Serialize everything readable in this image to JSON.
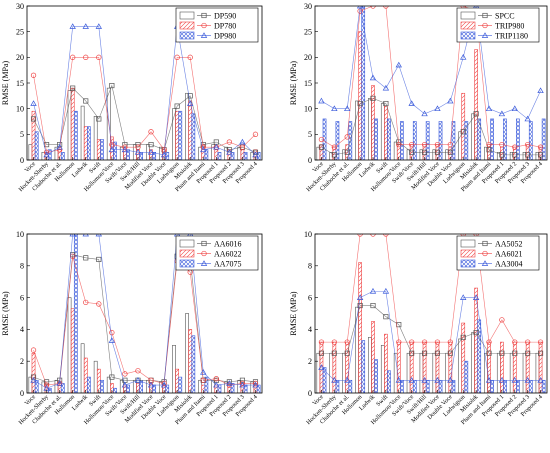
{
  "categories": [
    "Voce",
    "Hockett-Sherby",
    "Chaboche et al.",
    "Hollomon",
    "Ludwik",
    "Swift",
    "Hollomon/Voce",
    "Swift/Voce",
    "Swift/Hill",
    "Modified Voce",
    "Double Voce",
    "Ludwigson",
    "Misiolek",
    "Pham and Itami",
    "Proposed 1",
    "Proposed 2",
    "Proposed 3",
    "Proposed 4"
  ],
  "style": {
    "colors": [
      "#555555",
      "#ef4444",
      "#3b5bdb"
    ],
    "markers": [
      "square",
      "circle",
      "triangle"
    ],
    "hatch": [
      "none",
      "diagonal",
      "cross-diagonal"
    ]
  },
  "chart_data": [
    {
      "type": "bar",
      "ylabel": "RMSE (MPa)",
      "ylim": [
        0,
        30
      ],
      "yticks": [
        0,
        5,
        10,
        15,
        20,
        25,
        30
      ],
      "legend_position": "top-right",
      "series": [
        {
          "name": "DP590",
          "values": [
            3.0,
            1.5,
            2.5,
            13.5,
            10.5,
            8.5,
            14.0,
            2.5,
            3.0,
            3.0,
            2.5,
            10.0,
            13.0,
            2.5,
            3.0,
            2.5,
            2.5,
            1.5
          ]
        },
        {
          "name": "DP780",
          "values": [
            9.5,
            1.5,
            2.0,
            14.0,
            6.5,
            4.0,
            4.5,
            2.5,
            2.0,
            2.0,
            2.0,
            9.5,
            11.5,
            3.0,
            2.0,
            2.0,
            2.0,
            2.0
          ]
        },
        {
          "name": "DP980",
          "values": [
            5.5,
            2.0,
            1.5,
            9.5,
            6.5,
            4.0,
            3.5,
            2.0,
            1.5,
            1.5,
            1.5,
            9.5,
            9.0,
            2.0,
            1.5,
            1.5,
            1.5,
            1.5
          ]
        }
      ],
      "lines": [
        {
          "name": "DP590",
          "values": [
            8.0,
            3.0,
            3.0,
            14.0,
            11.5,
            8.0,
            14.5,
            3.0,
            3.0,
            3.0,
            2.0,
            10.5,
            12.5,
            3.0,
            3.5,
            2.0,
            2.5,
            1.5
          ]
        },
        {
          "name": "DP780",
          "values": [
            16.5,
            1.5,
            2.0,
            20.0,
            20.0,
            20.0,
            3.0,
            2.5,
            2.5,
            5.5,
            2.0,
            20.0,
            20.0,
            2.5,
            2.5,
            3.5,
            2.5,
            5.0
          ]
        },
        {
          "name": "DP980",
          "values": [
            11.0,
            1.0,
            2.5,
            26.0,
            26.0,
            26.0,
            2.0,
            2.0,
            1.5,
            1.5,
            1.0,
            26.0,
            11.0,
            2.0,
            2.5,
            1.5,
            3.5,
            1.0
          ]
        }
      ]
    },
    {
      "type": "bar",
      "ylabel": "RMSE (MPa)",
      "ylim": [
        0,
        30
      ],
      "yticks": [
        0,
        5,
        10,
        15,
        20,
        25,
        30
      ],
      "legend_position": "top-right",
      "series": [
        {
          "name": "SPCC",
          "values": [
            2.5,
            1.5,
            2.0,
            11.5,
            12.0,
            11.0,
            3.5,
            2.0,
            2.0,
            2.0,
            2.0,
            5.5,
            9.0,
            2.5,
            1.5,
            1.5,
            1.5,
            1.5
          ]
        },
        {
          "name": "TRIP980",
          "values": [
            3.0,
            2.5,
            3.0,
            25.0,
            14.5,
            10.5,
            3.0,
            3.0,
            3.0,
            3.0,
            2.5,
            13.0,
            21.5,
            3.0,
            2.5,
            2.5,
            3.0,
            2.5
          ]
        },
        {
          "name": "TRIP1180",
          "values": [
            8.0,
            7.5,
            7.5,
            30.0,
            8.0,
            8.0,
            7.5,
            7.5,
            7.5,
            7.5,
            7.5,
            7.5,
            8.0,
            8.0,
            8.0,
            8.0,
            7.5,
            8.0
          ]
        }
      ],
      "lines": [
        {
          "name": "SPCC",
          "values": [
            2.5,
            1.0,
            1.5,
            11.0,
            12.0,
            11.0,
            3.5,
            1.5,
            1.5,
            1.5,
            1.5,
            5.5,
            9.0,
            2.0,
            1.0,
            1.0,
            1.0,
            1.0
          ]
        },
        {
          "name": "TRIP980",
          "values": [
            4.0,
            2.5,
            4.5,
            29.0,
            30.0,
            30.0,
            3.0,
            3.0,
            3.0,
            3.0,
            3.0,
            30.0,
            29.0,
            3.0,
            3.0,
            2.5,
            3.0,
            2.5
          ]
        },
        {
          "name": "TRIP1180",
          "values": [
            11.5,
            10.0,
            10.0,
            30.0,
            16.0,
            14.0,
            18.5,
            11.0,
            9.0,
            10.0,
            11.5,
            20.0,
            30.0,
            10.0,
            9.0,
            10.0,
            8.0,
            13.5
          ]
        }
      ]
    },
    {
      "type": "bar",
      "ylabel": "RMSE (MPa)",
      "ylim": [
        0,
        10
      ],
      "yticks": [
        0,
        2,
        4,
        6,
        8,
        10
      ],
      "legend_position": "top-right",
      "series": [
        {
          "name": "AA6016",
          "values": [
            1.0,
            0.7,
            0.8,
            6.0,
            3.1,
            2.0,
            1.0,
            0.8,
            0.8,
            0.8,
            0.7,
            3.0,
            5.0,
            0.8,
            0.8,
            0.7,
            0.8,
            0.7
          ]
        },
        {
          "name": "AA6022",
          "values": [
            2.5,
            0.5,
            0.6,
            5.3,
            2.2,
            1.5,
            0.6,
            0.5,
            0.6,
            0.6,
            0.5,
            1.5,
            4.0,
            0.5,
            0.5,
            0.5,
            0.6,
            0.6
          ]
        },
        {
          "name": "AA7075",
          "values": [
            0.8,
            0.3,
            0.6,
            10.0,
            1.0,
            0.8,
            0.3,
            0.5,
            0.8,
            0.5,
            0.5,
            1.0,
            3.6,
            1.0,
            0.5,
            0.6,
            0.5,
            0.5
          ]
        }
      ],
      "lines": [
        {
          "name": "AA6016",
          "values": [
            1.0,
            0.7,
            0.8,
            8.7,
            8.5,
            8.4,
            1.0,
            0.8,
            0.8,
            0.8,
            0.7,
            8.6,
            8.4,
            0.8,
            0.8,
            0.7,
            0.8,
            0.7
          ]
        },
        {
          "name": "AA6022",
          "values": [
            2.7,
            0.5,
            0.6,
            8.6,
            5.7,
            5.6,
            3.8,
            1.2,
            1.4,
            0.8,
            0.6,
            8.3,
            7.6,
            0.8,
            0.9,
            0.5,
            0.6,
            0.6
          ]
        },
        {
          "name": "AA7075",
          "values": [
            0.8,
            0.3,
            0.6,
            10.0,
            10.0,
            10.0,
            3.3,
            0.5,
            0.8,
            0.5,
            0.5,
            10.0,
            10.0,
            1.3,
            0.5,
            0.6,
            0.5,
            0.5
          ]
        }
      ]
    },
    {
      "type": "bar",
      "ylabel": "RMSE (MPa)",
      "ylim": [
        0,
        10
      ],
      "yticks": [
        0,
        2,
        4,
        6,
        8,
        10
      ],
      "legend_position": "top-right",
      "series": [
        {
          "name": "AA5052",
          "values": [
            2.5,
            2.5,
            2.5,
            5.4,
            3.5,
            3.0,
            2.5,
            2.5,
            2.5,
            2.5,
            2.5,
            3.4,
            3.8,
            2.5,
            2.5,
            2.5,
            2.5,
            2.5
          ]
        },
        {
          "name": "AA6021",
          "values": [
            3.2,
            3.2,
            3.2,
            8.2,
            4.5,
            3.7,
            3.2,
            3.2,
            3.2,
            3.2,
            3.2,
            4.4,
            6.6,
            3.2,
            3.2,
            3.2,
            3.2,
            3.2
          ]
        },
        {
          "name": "AA3004",
          "values": [
            1.6,
            0.8,
            0.8,
            3.3,
            2.1,
            1.4,
            0.8,
            0.8,
            0.8,
            0.8,
            0.8,
            2.0,
            4.6,
            0.8,
            0.8,
            0.8,
            0.8,
            0.8
          ]
        }
      ],
      "lines": [
        {
          "name": "AA5052",
          "values": [
            2.5,
            2.5,
            2.5,
            5.5,
            5.5,
            4.8,
            4.3,
            2.5,
            2.5,
            2.5,
            2.5,
            3.5,
            3.8,
            2.5,
            2.5,
            2.5,
            2.5,
            2.5
          ]
        },
        {
          "name": "AA6021",
          "values": [
            3.2,
            3.2,
            3.2,
            10.0,
            10.0,
            10.0,
            3.2,
            3.2,
            3.2,
            3.2,
            3.2,
            10.0,
            10.0,
            3.2,
            4.6,
            3.2,
            3.2,
            3.2
          ]
        },
        {
          "name": "AA3004",
          "values": [
            1.6,
            0.8,
            0.8,
            6.0,
            6.4,
            6.4,
            0.8,
            0.8,
            0.8,
            0.8,
            0.8,
            6.0,
            6.0,
            0.8,
            0.8,
            0.8,
            0.8,
            0.8
          ]
        }
      ]
    }
  ]
}
